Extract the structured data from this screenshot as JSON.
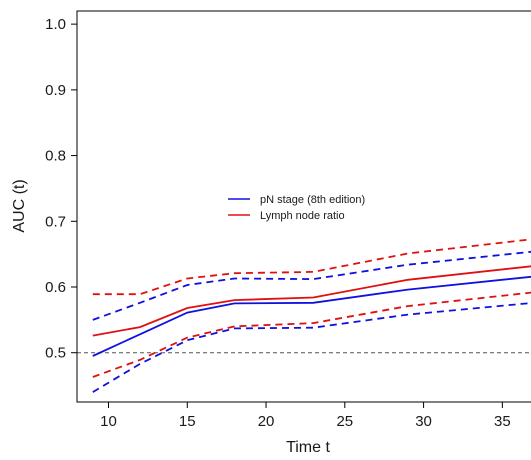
{
  "chart_data": {
    "type": "line",
    "title": "",
    "xlabel": "Time t",
    "ylabel": "AUC (t)",
    "xlim": [
      8,
      37.2
    ],
    "ylim": [
      0.425,
      1.02
    ],
    "xticks": [
      10,
      15,
      20,
      25,
      30,
      35
    ],
    "yticks": [
      0.5,
      0.6,
      0.7,
      0.8,
      0.9,
      1.0
    ],
    "xtick_labels": [
      "10",
      "15",
      "20",
      "25",
      "30",
      "35"
    ],
    "ytick_labels": [
      "0.5",
      "0.6",
      "0.7",
      "0.8",
      "0.9",
      "1.0"
    ],
    "grid": false,
    "legend": {
      "placement": "center",
      "entries": [
        "pN stage (8th edition)",
        "Lymph node ratio"
      ]
    },
    "reference_line": {
      "y": 0.5,
      "style": "dashed",
      "color": "#555555"
    },
    "series": [
      {
        "name": "pN stage (8th edition)",
        "color": "#1010e0",
        "x": [
          9,
          12,
          15,
          18,
          23,
          29,
          37
        ],
        "auc": [
          0.495,
          0.528,
          0.561,
          0.575,
          0.576,
          0.596,
          0.616
        ],
        "upper": [
          0.55,
          0.576,
          0.603,
          0.613,
          0.612,
          0.634,
          0.654
        ],
        "lower": [
          0.44,
          0.483,
          0.519,
          0.537,
          0.538,
          0.558,
          0.576
        ]
      },
      {
        "name": "Lymph node ratio",
        "color": "#e01010",
        "x": [
          9,
          12,
          15,
          18,
          23,
          29,
          37
        ],
        "auc": [
          0.526,
          0.539,
          0.568,
          0.58,
          0.584,
          0.611,
          0.632
        ],
        "upper": [
          0.589,
          0.589,
          0.613,
          0.621,
          0.623,
          0.651,
          0.673
        ],
        "lower": [
          0.463,
          0.489,
          0.523,
          0.54,
          0.545,
          0.571,
          0.592
        ]
      }
    ]
  }
}
